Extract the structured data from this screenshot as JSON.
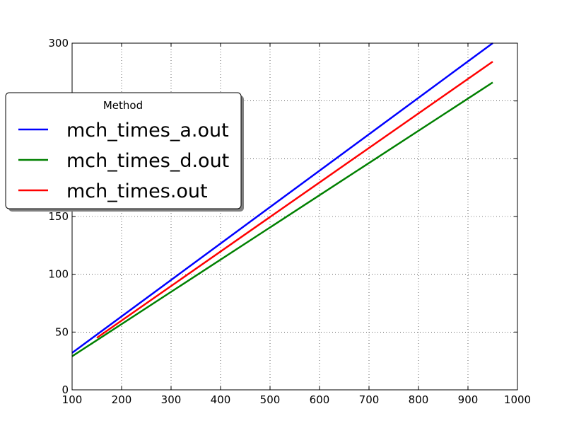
{
  "chart_data": {
    "type": "line",
    "title": "",
    "xlabel": "",
    "ylabel": "",
    "xlim": [
      100,
      1000
    ],
    "ylim": [
      0,
      300
    ],
    "x_ticks": [
      100,
      200,
      300,
      400,
      500,
      600,
      700,
      800,
      900,
      1000
    ],
    "y_ticks": [
      0,
      50,
      100,
      150,
      200,
      250,
      300
    ],
    "grid": true,
    "legend": {
      "title": "Method",
      "placement": "center-left, extending outside the plot area"
    },
    "series": [
      {
        "name": "mch_times_a.out",
        "color": "#0000ff",
        "x": [
          100,
          950
        ],
        "y": [
          32,
          300
        ]
      },
      {
        "name": "mch_times_d.out",
        "color": "#008000",
        "x": [
          100,
          950
        ],
        "y": [
          29,
          266
        ]
      },
      {
        "name": "mch_times.out",
        "color": "#ff0000",
        "x": [
          150,
          950
        ],
        "y": [
          45,
          284
        ]
      }
    ]
  }
}
